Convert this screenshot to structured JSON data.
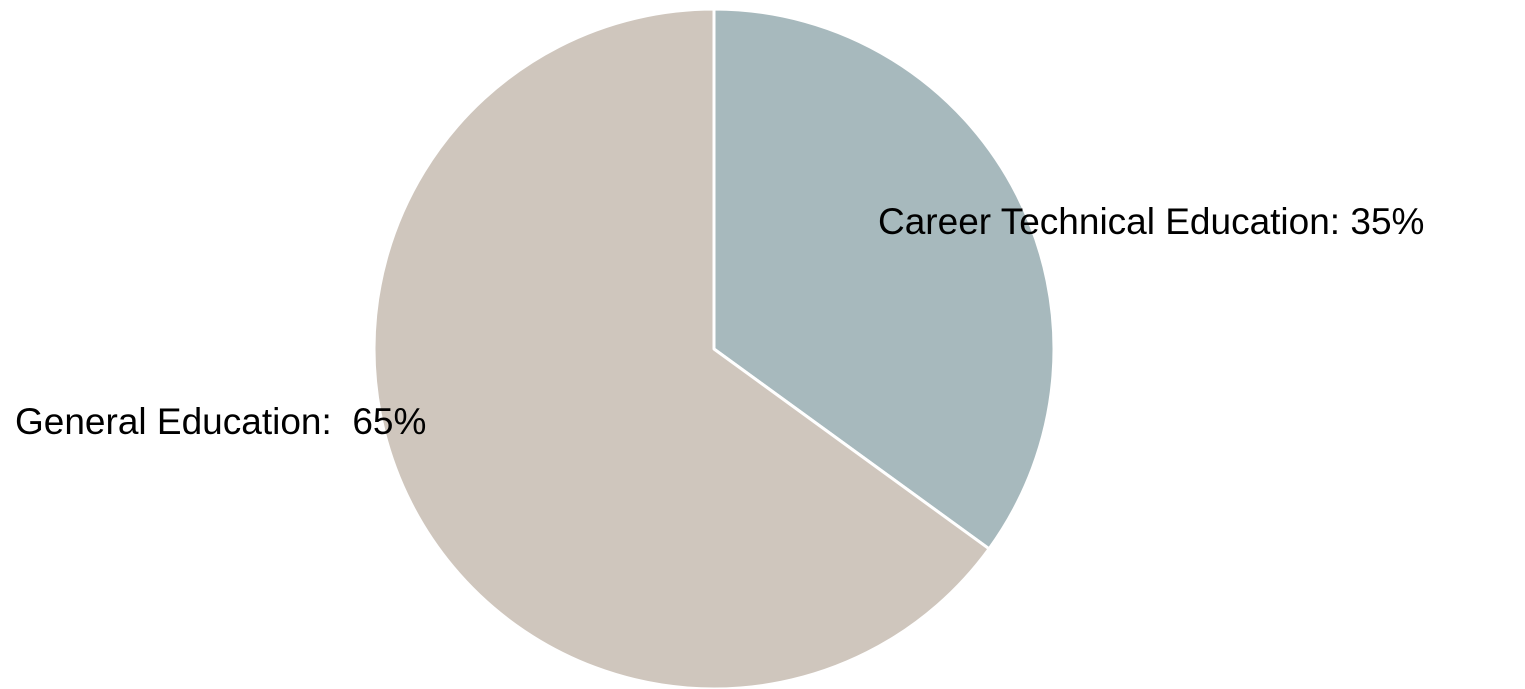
{
  "chart_data": {
    "type": "pie",
    "values": [
      35,
      65
    ],
    "value_labels": [
      "Career Technical Education: 35%",
      "General Education:  65%"
    ],
    "colors": [
      "#a7b9bd",
      "#cfc6bd"
    ]
  }
}
